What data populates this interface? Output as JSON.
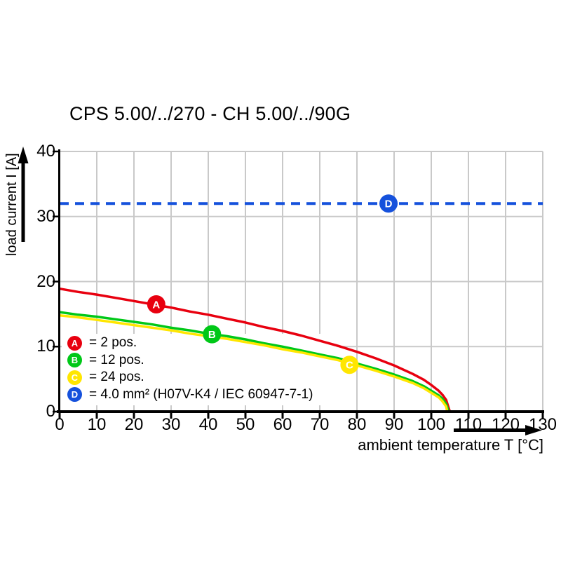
{
  "title": "CPS 5.00/../270 - CH 5.00/../90G",
  "colors": {
    "red": "#e8000f",
    "green": "#00c818",
    "yellow": "#ffe600",
    "blue": "#1551dc",
    "grid": "#c9c9c9",
    "axis": "#000000",
    "plot_bg": "#ffffff",
    "marker_letter": "#ffffff"
  },
  "chart_data": {
    "type": "line",
    "title": "CPS 5.00/../270 - CH 5.00/../90G",
    "xlabel": "ambient temperature T [°C]",
    "ylabel": "load current I [A]",
    "xlim": [
      0,
      130
    ],
    "ylim": [
      0,
      40
    ],
    "x_ticks": [
      0,
      10,
      20,
      30,
      40,
      50,
      60,
      70,
      80,
      90,
      100,
      110,
      120,
      130
    ],
    "y_ticks": [
      0,
      10,
      20,
      30,
      40
    ],
    "grid": true,
    "legend_position": "lower-left-inside",
    "series": [
      {
        "name": "A",
        "label": "= 2 pos.",
        "color": "#e8000f",
        "kind": "curve",
        "marker": {
          "letter": "A",
          "x": 26,
          "y": 16.5
        },
        "points": [
          [
            0,
            18.9
          ],
          [
            5,
            18.4
          ],
          [
            10,
            18.0
          ],
          [
            15,
            17.5
          ],
          [
            20,
            17.0
          ],
          [
            25,
            16.5
          ],
          [
            30,
            16.0
          ],
          [
            35,
            15.4
          ],
          [
            40,
            14.9
          ],
          [
            45,
            14.3
          ],
          [
            50,
            13.7
          ],
          [
            55,
            13.0
          ],
          [
            60,
            12.4
          ],
          [
            65,
            11.7
          ],
          [
            70,
            10.9
          ],
          [
            75,
            10.1
          ],
          [
            80,
            9.2
          ],
          [
            85,
            8.2
          ],
          [
            90,
            7.1
          ],
          [
            95,
            5.8
          ],
          [
            98,
            4.9
          ],
          [
            100,
            4.1
          ],
          [
            102,
            3.2
          ],
          [
            103,
            2.6
          ],
          [
            104,
            1.8
          ],
          [
            105,
            0
          ]
        ]
      },
      {
        "name": "B",
        "label": "= 12 pos.",
        "color": "#00c818",
        "kind": "curve",
        "marker": {
          "letter": "B",
          "x": 41,
          "y": 11.9
        },
        "points": [
          [
            0,
            15.3
          ],
          [
            5,
            14.9
          ],
          [
            10,
            14.6
          ],
          [
            15,
            14.2
          ],
          [
            20,
            13.8
          ],
          [
            25,
            13.4
          ],
          [
            30,
            12.9
          ],
          [
            35,
            12.5
          ],
          [
            40,
            12.0
          ],
          [
            45,
            11.6
          ],
          [
            50,
            11.1
          ],
          [
            55,
            10.5
          ],
          [
            60,
            10.0
          ],
          [
            65,
            9.4
          ],
          [
            70,
            8.8
          ],
          [
            75,
            8.2
          ],
          [
            80,
            7.4
          ],
          [
            85,
            6.6
          ],
          [
            90,
            5.7
          ],
          [
            95,
            4.7
          ],
          [
            98,
            3.9
          ],
          [
            100,
            3.2
          ],
          [
            102,
            2.5
          ],
          [
            103,
            2.0
          ],
          [
            104,
            1.2
          ],
          [
            104.7,
            0
          ]
        ]
      },
      {
        "name": "C",
        "label": "= 24 pos.",
        "color": "#ffe600",
        "kind": "curve",
        "marker": {
          "letter": "C",
          "x": 78,
          "y": 7.2
        },
        "points": [
          [
            0,
            14.8
          ],
          [
            5,
            14.5
          ],
          [
            10,
            14.1
          ],
          [
            15,
            13.7
          ],
          [
            20,
            13.3
          ],
          [
            25,
            12.9
          ],
          [
            30,
            12.5
          ],
          [
            35,
            12.0
          ],
          [
            40,
            11.6
          ],
          [
            45,
            11.2
          ],
          [
            50,
            10.7
          ],
          [
            55,
            10.2
          ],
          [
            60,
            9.6
          ],
          [
            65,
            9.1
          ],
          [
            70,
            8.5
          ],
          [
            75,
            7.9
          ],
          [
            80,
            7.1
          ],
          [
            85,
            6.3
          ],
          [
            90,
            5.4
          ],
          [
            95,
            4.4
          ],
          [
            98,
            3.6
          ],
          [
            100,
            2.9
          ],
          [
            102,
            2.2
          ],
          [
            103,
            1.6
          ],
          [
            104,
            0.8
          ],
          [
            104.3,
            0
          ]
        ]
      },
      {
        "name": "D",
        "label": "= 4.0 mm² (H07V-K4 / IEC 60947-7-1)",
        "color": "#1551dc",
        "kind": "dashed-hline",
        "value": 32,
        "marker": {
          "letter": "D",
          "x": 88.5,
          "y": 32
        }
      }
    ]
  },
  "legend": {
    "items": [
      {
        "letter": "A",
        "color": "#e8000f",
        "label": "= 2 pos."
      },
      {
        "letter": "B",
        "color": "#00c818",
        "label": "= 12 pos."
      },
      {
        "letter": "C",
        "color": "#ffe600",
        "label": "= 24 pos."
      },
      {
        "letter": "D",
        "color": "#1551dc",
        "label": "= 4.0 mm² (H07V-K4 / IEC 60947-7-1)"
      }
    ]
  }
}
